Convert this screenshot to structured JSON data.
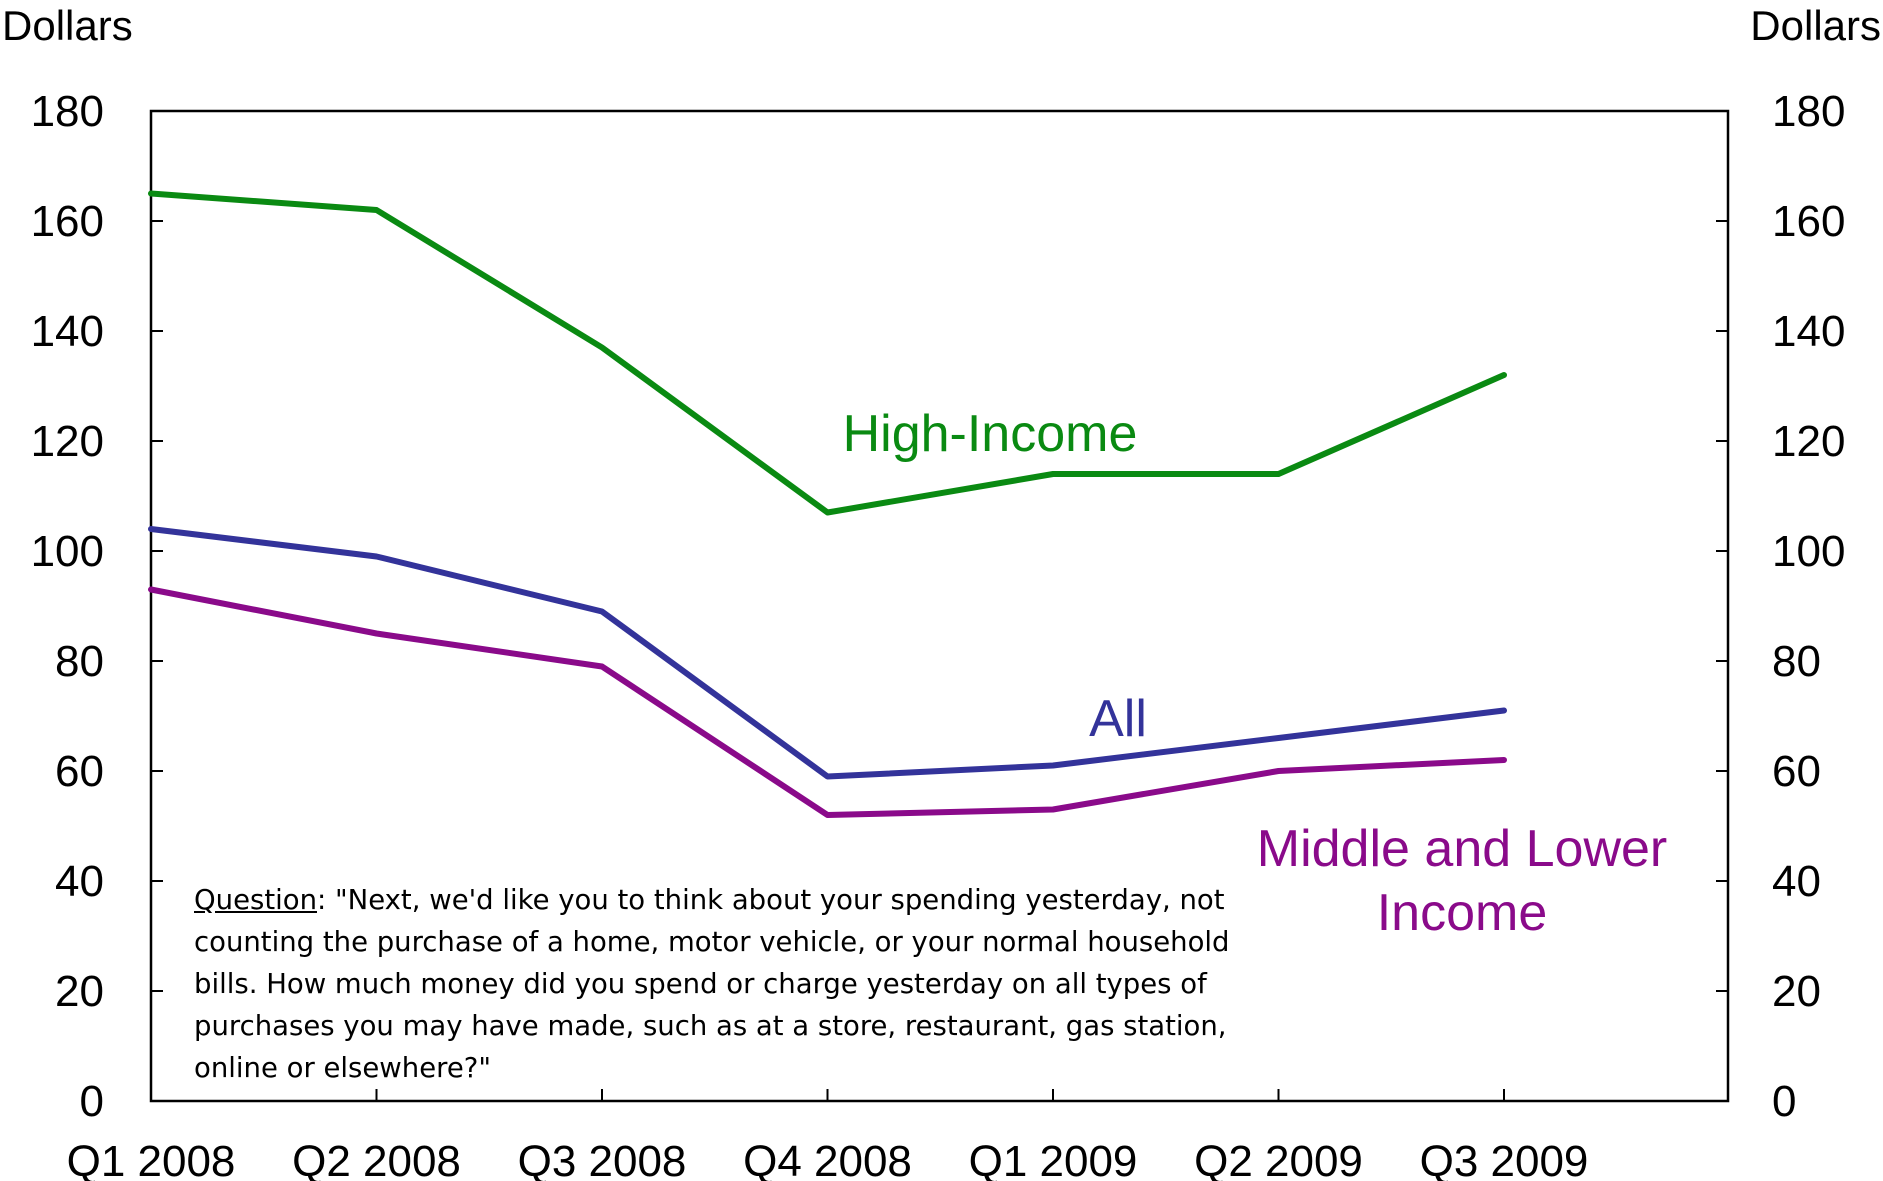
{
  "chart_data": {
    "type": "line",
    "title": "",
    "ylabel_left": "Dollars",
    "ylabel_right": "Dollars",
    "xlabel": "",
    "ylim": [
      0,
      180
    ],
    "y_ticks": [
      "0",
      "20",
      "40",
      "60",
      "80",
      "100",
      "120",
      "140",
      "160",
      "180"
    ],
    "categories": [
      "Q1 2008",
      "Q2 2008",
      "Q3 2008",
      "Q4 2008",
      "Q1 2009",
      "Q2 2009",
      "Q3 2009"
    ],
    "grid": false,
    "legend": "inline labels",
    "series": [
      {
        "name": "High-Income",
        "color": "#0a8a12",
        "values": [
          165,
          162,
          137,
          107,
          114,
          114,
          132
        ]
      },
      {
        "name": "All",
        "color": "#33339a",
        "values": [
          104,
          99,
          89,
          59,
          61,
          66,
          71
        ]
      },
      {
        "name": "Middle and Lower Income",
        "color": "#8a0a8a",
        "values": [
          93,
          85,
          79,
          52,
          53,
          60,
          62
        ]
      }
    ],
    "series_label_lines": {
      "High-Income": [
        "High-Income"
      ],
      "All": [
        "All"
      ],
      "Middle and Lower Income": [
        "Middle and Lower",
        "Income"
      ]
    },
    "annotation": {
      "keyword": "Question",
      "text": ": \"Next, we'd like you to think about your spending yesterday, not counting the purchase of a home, motor vehicle, or your normal household bills. How much money did you spend or charge yesterday on all types of purchases you may have made, such as at a store, restaurant, gas station, online or elsewhere?\""
    }
  }
}
